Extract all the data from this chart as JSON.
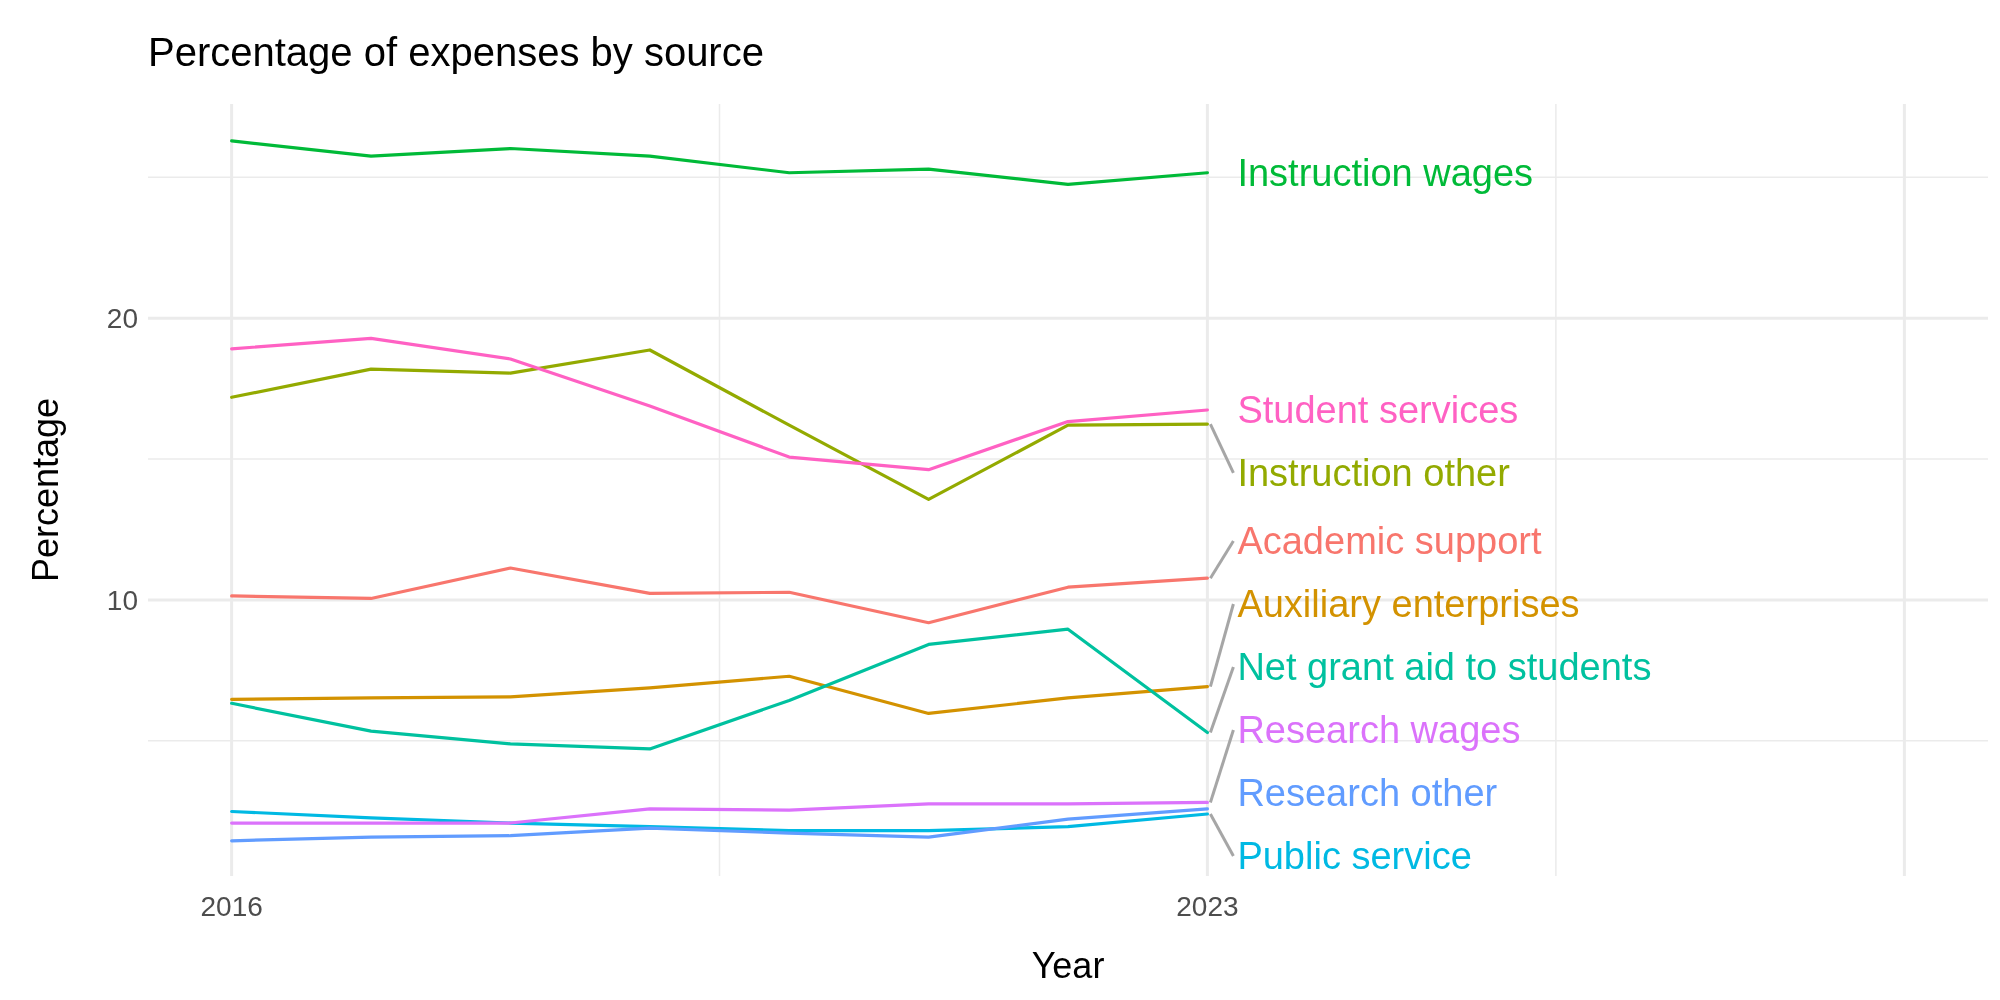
{
  "chart_data": {
    "type": "line",
    "title": "Percentage of expenses by source",
    "xlabel": "Year",
    "ylabel": "Percentage",
    "x": [
      2016,
      2017,
      2018,
      2019,
      2020,
      2021,
      2022,
      2023
    ],
    "xlim": [
      2015.4,
      2028.6
    ],
    "xticks": [
      2016,
      2023,
      {
        "value": 2028,
        "label": null
      }
    ],
    "ylim": [
      0.2,
      27.6
    ],
    "yticks": [
      10,
      20
    ],
    "grid": true,
    "line_style": "solid",
    "marker": "none",
    "series": [
      {
        "name": "Academic support",
        "color": "#f8766d",
        "values": [
          10.14,
          10.05,
          11.13,
          10.23,
          10.27,
          9.19,
          10.45,
          10.77
        ]
      },
      {
        "name": "Auxiliary enterprises",
        "color": "#d39200",
        "values": [
          6.47,
          6.52,
          6.56,
          6.88,
          7.29,
          5.97,
          6.52,
          6.92
        ]
      },
      {
        "name": "Instruction other",
        "color": "#93aa00",
        "values": [
          17.19,
          18.19,
          18.05,
          18.87,
          16.2,
          13.57,
          16.2,
          16.24
        ]
      },
      {
        "name": "Instruction wages",
        "color": "#00ba38",
        "values": [
          26.29,
          25.75,
          26.02,
          25.75,
          25.16,
          25.29,
          24.75,
          25.16
        ]
      },
      {
        "name": "Net grant aid to students",
        "color": "#00c19f",
        "values": [
          6.33,
          5.34,
          4.89,
          4.71,
          6.43,
          8.42,
          8.96,
          5.29
        ]
      },
      {
        "name": "Public service",
        "color": "#00b9e3",
        "values": [
          2.49,
          2.26,
          2.08,
          1.95,
          1.81,
          1.81,
          1.95,
          2.4
        ]
      },
      {
        "name": "Research other",
        "color": "#619cff",
        "values": [
          1.45,
          1.58,
          1.63,
          1.9,
          1.72,
          1.58,
          2.22,
          2.58
        ]
      },
      {
        "name": "Research wages",
        "color": "#db72fb",
        "values": [
          2.08,
          2.08,
          2.08,
          2.58,
          2.54,
          2.76,
          2.76,
          2.81
        ]
      },
      {
        "name": "Student services",
        "color": "#ff61c3",
        "values": [
          18.91,
          19.28,
          18.55,
          16.88,
          15.07,
          14.62,
          16.33,
          16.74
        ]
      }
    ]
  }
}
